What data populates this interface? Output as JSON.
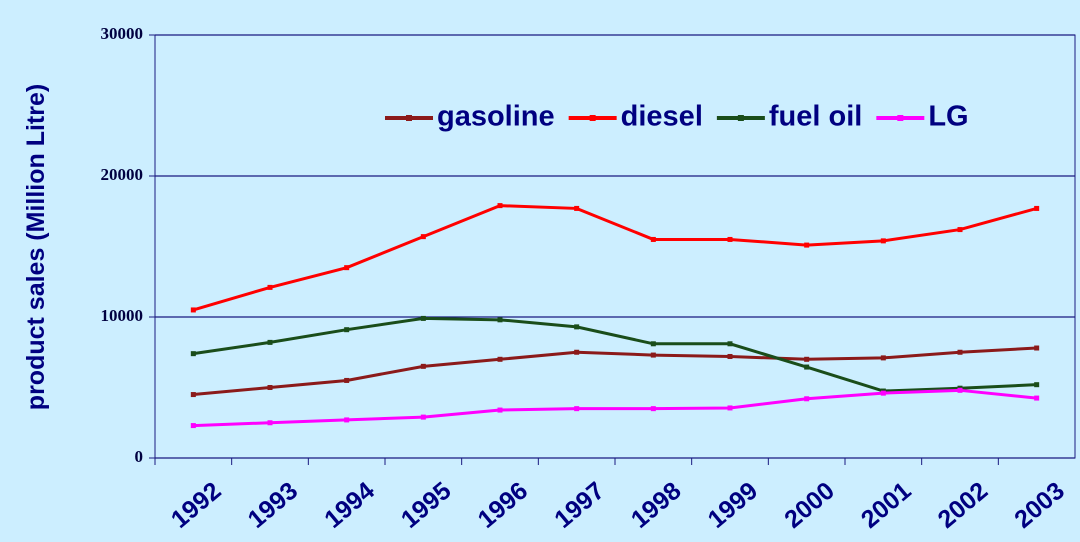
{
  "chart_data": {
    "type": "line",
    "y_label": "product sales (Million Litre)",
    "categories": [
      "1992",
      "1993",
      "1994",
      "1995",
      "1996",
      "1997",
      "1998",
      "1999",
      "2000",
      "2001",
      "2002",
      "2003"
    ],
    "series": [
      {
        "name": "gasoline",
        "color": "#8b1a1a",
        "values": [
          4500,
          5000,
          5500,
          6500,
          7000,
          7500,
          7300,
          7200,
          7000,
          7100,
          7500,
          7800
        ]
      },
      {
        "name": "diesel",
        "color": "#ff0000",
        "values": [
          10500,
          12100,
          13500,
          15700,
          17900,
          17700,
          15500,
          15500,
          15100,
          15400,
          16200,
          17700
        ]
      },
      {
        "name": "fuel oil",
        "color": "#1a4d1a",
        "values": [
          7400,
          8200,
          9100,
          9900,
          9800,
          9300,
          8100,
          8100,
          6450,
          4750,
          4950,
          5200
        ]
      },
      {
        "name": "LG",
        "color": "#ff00ff",
        "values": [
          2300,
          2500,
          2700,
          2900,
          3400,
          3500,
          3500,
          3550,
          4200,
          4600,
          4800,
          4250
        ]
      }
    ],
    "ylim": [
      0,
      30000
    ],
    "yticks": [
      0,
      10000,
      20000,
      30000
    ],
    "grid": true
  }
}
